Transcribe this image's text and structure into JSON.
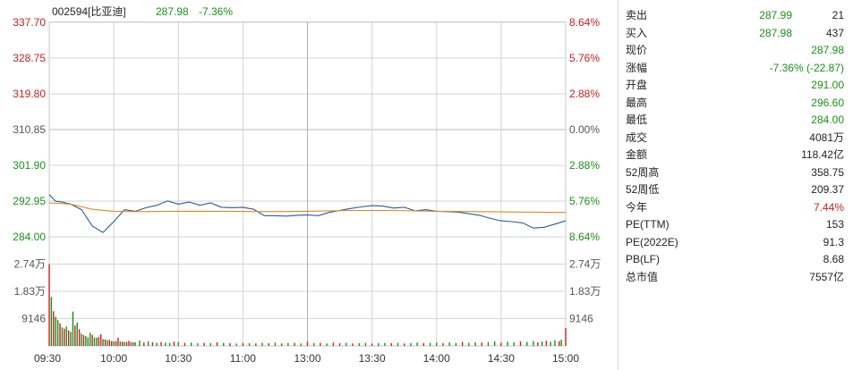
{
  "header": {
    "code_name": "002594[比亚迪]",
    "price": "287.98",
    "change_pct": "-7.36%"
  },
  "colors": {
    "price_line": "#2a5b9a",
    "avg_line": "#e08a1e",
    "up": "#c81e1e",
    "down": "#1a8f1a",
    "neutral": "#555555",
    "grid": "#d4d4d4"
  },
  "chart_data": {
    "type": "line",
    "price_axis": {
      "ticks": [
        "337.70",
        "328.75",
        "319.80",
        "310.85",
        "301.90",
        "292.95",
        "284.00"
      ],
      "ylim": [
        284.0,
        337.7
      ],
      "reference": 310.85
    },
    "pct_axis": {
      "ticks": [
        "8.64%",
        "5.76%",
        "2.88%",
        "0.00%",
        "2.88%",
        "5.76%",
        "8.64%"
      ]
    },
    "volume_axis": {
      "left_ticks": [
        "2.74万",
        "1.83万",
        "9146"
      ],
      "right_ticks": [
        "2.74万",
        "1.83万",
        "9146"
      ],
      "ylim": [
        0,
        36577
      ]
    },
    "x_ticks": [
      "09:30",
      "10:00",
      "10:30",
      "11:00",
      "13:00",
      "13:30",
      "14:00",
      "14:30",
      "15:00"
    ],
    "series": [
      {
        "key": "price",
        "x": [
          0,
          3,
          6,
          10,
          15,
          20,
          25,
          30,
          35,
          40,
          45,
          50,
          55,
          60,
          65,
          70,
          75,
          80,
          85,
          90,
          95,
          100,
          105,
          110,
          115,
          120,
          125,
          130,
          135,
          140,
          145,
          150,
          155,
          160,
          165,
          170,
          175,
          180,
          185,
          190,
          195,
          200,
          205,
          210,
          215,
          220,
          225,
          230,
          235,
          240
        ],
        "values": [
          294.6,
          292.9,
          292.7,
          292.2,
          290.8,
          286.7,
          285.1,
          287.8,
          290.8,
          290.4,
          291.3,
          291.9,
          293.0,
          292.2,
          292.7,
          291.9,
          292.5,
          291.4,
          291.3,
          291.4,
          290.9,
          289.3,
          289.3,
          289.2,
          289.4,
          289.5,
          289.3,
          290.1,
          290.6,
          291.1,
          291.5,
          291.8,
          291.7,
          291.2,
          291.4,
          290.5,
          290.8,
          290.4,
          290.3,
          290.2,
          289.8,
          289.4,
          288.6,
          288.0,
          287.8,
          287.5,
          286.2,
          286.4,
          287.2,
          287.98
        ]
      },
      {
        "key": "avg",
        "x": [
          0,
          10,
          20,
          30,
          40,
          60,
          80,
          100,
          120,
          140,
          160,
          180,
          200,
          220,
          240
        ],
        "values": [
          292.5,
          292.2,
          290.9,
          290.4,
          290.3,
          290.4,
          290.4,
          290.3,
          290.4,
          290.6,
          290.6,
          290.4,
          290.3,
          290.2,
          290.1
        ]
      }
    ],
    "volume_bars": [
      {
        "x": 0,
        "v": 27400,
        "dir": "up"
      },
      {
        "x": 1,
        "v": 16400,
        "dir": "down"
      },
      {
        "x": 2,
        "v": 11600,
        "dir": "up"
      },
      {
        "x": 3,
        "v": 9800,
        "dir": "down"
      },
      {
        "x": 4,
        "v": 8700,
        "dir": "down"
      },
      {
        "x": 5,
        "v": 7600,
        "dir": "up"
      },
      {
        "x": 6,
        "v": 6200,
        "dir": "down"
      },
      {
        "x": 7,
        "v": 5800,
        "dir": "up"
      },
      {
        "x": 8,
        "v": 6500,
        "dir": "down"
      },
      {
        "x": 9,
        "v": 5200,
        "dir": "up"
      },
      {
        "x": 10,
        "v": 4700,
        "dir": "down"
      },
      {
        "x": 11,
        "v": 11500,
        "dir": "down"
      },
      {
        "x": 12,
        "v": 6900,
        "dir": "up"
      },
      {
        "x": 13,
        "v": 7900,
        "dir": "down"
      },
      {
        "x": 14,
        "v": 5600,
        "dir": "up"
      },
      {
        "x": 15,
        "v": 4100,
        "dir": "down"
      },
      {
        "x": 16,
        "v": 3600,
        "dir": "up"
      },
      {
        "x": 17,
        "v": 3300,
        "dir": "down"
      },
      {
        "x": 18,
        "v": 2900,
        "dir": "down"
      },
      {
        "x": 19,
        "v": 4400,
        "dir": "down"
      },
      {
        "x": 20,
        "v": 3700,
        "dir": "up"
      },
      {
        "x": 21,
        "v": 2800,
        "dir": "down"
      },
      {
        "x": 22,
        "v": 2700,
        "dir": "down"
      },
      {
        "x": 23,
        "v": 3000,
        "dir": "up"
      },
      {
        "x": 24,
        "v": 3900,
        "dir": "up"
      },
      {
        "x": 25,
        "v": 2300,
        "dir": "down"
      },
      {
        "x": 26,
        "v": 2200,
        "dir": "up"
      },
      {
        "x": 27,
        "v": 1900,
        "dir": "down"
      },
      {
        "x": 28,
        "v": 2000,
        "dir": "up"
      },
      {
        "x": 29,
        "v": 1600,
        "dir": "up"
      },
      {
        "x": 30,
        "v": 1500,
        "dir": "down"
      },
      {
        "x": 31,
        "v": 1600,
        "dir": "up"
      },
      {
        "x": 32,
        "v": 2700,
        "dir": "up"
      },
      {
        "x": 33,
        "v": 1500,
        "dir": "down"
      },
      {
        "x": 34,
        "v": 1400,
        "dir": "up"
      },
      {
        "x": 35,
        "v": 1300,
        "dir": "down"
      },
      {
        "x": 36,
        "v": 1300,
        "dir": "up"
      },
      {
        "x": 37,
        "v": 1700,
        "dir": "up"
      },
      {
        "x": 38,
        "v": 1300,
        "dir": "down"
      },
      {
        "x": 39,
        "v": 1200,
        "dir": "up"
      },
      {
        "x": 40,
        "v": 1200,
        "dir": "down"
      },
      {
        "x": 42,
        "v": 1800,
        "dir": "down"
      },
      {
        "x": 44,
        "v": 1100,
        "dir": "up"
      },
      {
        "x": 46,
        "v": 1500,
        "dir": "down"
      },
      {
        "x": 48,
        "v": 1200,
        "dir": "up"
      },
      {
        "x": 50,
        "v": 1000,
        "dir": "down"
      },
      {
        "x": 52,
        "v": 1300,
        "dir": "up"
      },
      {
        "x": 54,
        "v": 1100,
        "dir": "down"
      },
      {
        "x": 56,
        "v": 1000,
        "dir": "down"
      },
      {
        "x": 58,
        "v": 1400,
        "dir": "up"
      },
      {
        "x": 60,
        "v": 1300,
        "dir": "down"
      },
      {
        "x": 63,
        "v": 1000,
        "dir": "up"
      },
      {
        "x": 66,
        "v": 1100,
        "dir": "down"
      },
      {
        "x": 69,
        "v": 900,
        "dir": "down"
      },
      {
        "x": 72,
        "v": 1000,
        "dir": "up"
      },
      {
        "x": 75,
        "v": 900,
        "dir": "down"
      },
      {
        "x": 78,
        "v": 1200,
        "dir": "up"
      },
      {
        "x": 81,
        "v": 1000,
        "dir": "down"
      },
      {
        "x": 84,
        "v": 900,
        "dir": "up"
      },
      {
        "x": 87,
        "v": 800,
        "dir": "down"
      },
      {
        "x": 90,
        "v": 1000,
        "dir": "up"
      },
      {
        "x": 93,
        "v": 900,
        "dir": "down"
      },
      {
        "x": 96,
        "v": 800,
        "dir": "up"
      },
      {
        "x": 99,
        "v": 1000,
        "dir": "down"
      },
      {
        "x": 102,
        "v": 900,
        "dir": "up"
      },
      {
        "x": 105,
        "v": 1100,
        "dir": "down"
      },
      {
        "x": 108,
        "v": 800,
        "dir": "up"
      },
      {
        "x": 111,
        "v": 900,
        "dir": "down"
      },
      {
        "x": 114,
        "v": 1000,
        "dir": "up"
      },
      {
        "x": 117,
        "v": 800,
        "dir": "down"
      },
      {
        "x": 120,
        "v": 1400,
        "dir": "up"
      },
      {
        "x": 123,
        "v": 900,
        "dir": "down"
      },
      {
        "x": 126,
        "v": 1000,
        "dir": "up"
      },
      {
        "x": 129,
        "v": 800,
        "dir": "down"
      },
      {
        "x": 132,
        "v": 1100,
        "dir": "up"
      },
      {
        "x": 135,
        "v": 900,
        "dir": "up"
      },
      {
        "x": 138,
        "v": 1000,
        "dir": "down"
      },
      {
        "x": 141,
        "v": 800,
        "dir": "up"
      },
      {
        "x": 144,
        "v": 900,
        "dir": "down"
      },
      {
        "x": 147,
        "v": 1000,
        "dir": "down"
      },
      {
        "x": 150,
        "v": 800,
        "dir": "up"
      },
      {
        "x": 153,
        "v": 900,
        "dir": "down"
      },
      {
        "x": 156,
        "v": 1000,
        "dir": "down"
      },
      {
        "x": 159,
        "v": 900,
        "dir": "up"
      },
      {
        "x": 162,
        "v": 1000,
        "dir": "down"
      },
      {
        "x": 165,
        "v": 800,
        "dir": "up"
      },
      {
        "x": 168,
        "v": 900,
        "dir": "down"
      },
      {
        "x": 171,
        "v": 1100,
        "dir": "down"
      },
      {
        "x": 174,
        "v": 900,
        "dir": "up"
      },
      {
        "x": 177,
        "v": 1000,
        "dir": "down"
      },
      {
        "x": 180,
        "v": 1100,
        "dir": "down"
      },
      {
        "x": 183,
        "v": 900,
        "dir": "up"
      },
      {
        "x": 186,
        "v": 1200,
        "dir": "down"
      },
      {
        "x": 189,
        "v": 1000,
        "dir": "down"
      },
      {
        "x": 192,
        "v": 1300,
        "dir": "up"
      },
      {
        "x": 195,
        "v": 1000,
        "dir": "down"
      },
      {
        "x": 198,
        "v": 1200,
        "dir": "down"
      },
      {
        "x": 201,
        "v": 1100,
        "dir": "up"
      },
      {
        "x": 204,
        "v": 1300,
        "dir": "down"
      },
      {
        "x": 207,
        "v": 1500,
        "dir": "down"
      },
      {
        "x": 210,
        "v": 1100,
        "dir": "up"
      },
      {
        "x": 213,
        "v": 1400,
        "dir": "down"
      },
      {
        "x": 216,
        "v": 1200,
        "dir": "down"
      },
      {
        "x": 219,
        "v": 1500,
        "dir": "up"
      },
      {
        "x": 222,
        "v": 1300,
        "dir": "down"
      },
      {
        "x": 225,
        "v": 1600,
        "dir": "down"
      },
      {
        "x": 227,
        "v": 1200,
        "dir": "up"
      },
      {
        "x": 229,
        "v": 1500,
        "dir": "down"
      },
      {
        "x": 231,
        "v": 1700,
        "dir": "up"
      },
      {
        "x": 233,
        "v": 1400,
        "dir": "down"
      },
      {
        "x": 235,
        "v": 1900,
        "dir": "down"
      },
      {
        "x": 237,
        "v": 1600,
        "dir": "up"
      },
      {
        "x": 238,
        "v": 2100,
        "dir": "down"
      },
      {
        "x": 240,
        "v": 6000,
        "dir": "up"
      }
    ]
  },
  "quote_panel": {
    "rows": [
      {
        "label": "卖出",
        "mid": "287.99",
        "value": "21",
        "mid_tone": "down",
        "tone": "plain"
      },
      {
        "label": "买入",
        "mid": "287.98",
        "value": "437",
        "mid_tone": "down",
        "tone": "plain"
      },
      {
        "label": "现价",
        "value": "287.98",
        "tone": "down"
      },
      {
        "label": "涨幅",
        "value": "-7.36% (-22.87)",
        "tone": "down"
      },
      {
        "label": "开盘",
        "value": "291.00",
        "tone": "down"
      },
      {
        "label": "最高",
        "value": "296.60",
        "tone": "down"
      },
      {
        "label": "最低",
        "value": "284.00",
        "tone": "down"
      },
      {
        "label": "成交",
        "value": "4081万",
        "tone": "plain"
      },
      {
        "label": "金额",
        "value": "118.42亿",
        "tone": "plain"
      },
      {
        "label": "52周高",
        "value": "358.75",
        "tone": "plain"
      },
      {
        "label": "52周低",
        "value": "209.37",
        "tone": "plain"
      },
      {
        "label": "今年",
        "value": "7.44%",
        "tone": "up"
      },
      {
        "label": "PE(TTM)",
        "value": "153",
        "tone": "plain"
      },
      {
        "label": "PE(2022E)",
        "value": "91.3",
        "tone": "plain"
      },
      {
        "label": "PB(LF)",
        "value": "8.68",
        "tone": "plain"
      },
      {
        "label": "总市值",
        "value": "7557亿",
        "tone": "plain"
      }
    ]
  }
}
